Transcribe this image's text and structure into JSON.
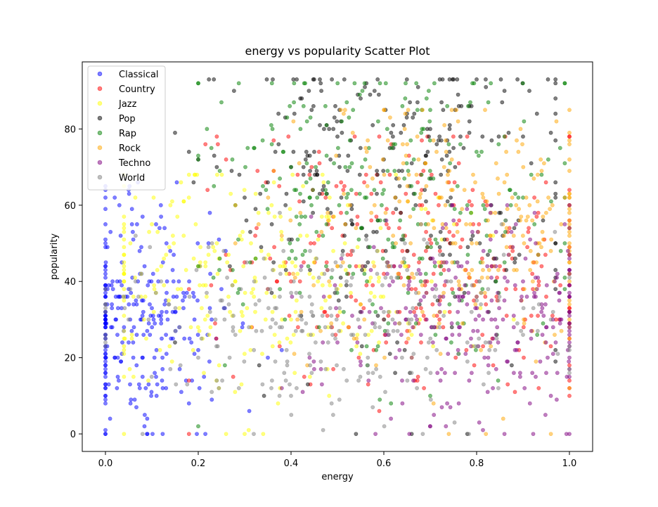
{
  "chart_data": {
    "type": "scatter",
    "title": "energy vs popularity Scatter Plot",
    "xlabel": "energy",
    "ylabel": "popularity",
    "xlim": [
      -0.05,
      1.05
    ],
    "ylim": [
      -4.6,
      97.6
    ],
    "xticks": [
      0.0,
      0.2,
      0.4,
      0.6,
      0.8,
      1.0
    ],
    "xtick_labels": [
      "0.0",
      "0.2",
      "0.4",
      "0.6",
      "0.8",
      "1.0"
    ],
    "yticks": [
      0,
      20,
      40,
      60,
      80
    ],
    "ytick_labels": [
      "0",
      "20",
      "40",
      "60",
      "80"
    ],
    "grid": false,
    "legend": "top-left",
    "marker_alpha": 0.5,
    "series": [
      {
        "name": "Classical",
        "color": "#0000ff",
        "x_range": [
          0.0,
          0.4
        ],
        "y_range": [
          0,
          66
        ],
        "approx_center": [
          0.06,
          30
        ],
        "points": [
          [
            0.01,
            4
          ],
          [
            0.02,
            62
          ],
          [
            0.03,
            60
          ],
          [
            0.05,
            64
          ],
          [
            0.06,
            20
          ],
          [
            0.08,
            15
          ],
          [
            0.09,
            4
          ],
          [
            0.1,
            33
          ],
          [
            0.12,
            30
          ],
          [
            0.15,
            32
          ],
          [
            0.17,
            25
          ],
          [
            0.18,
            8
          ],
          [
            0.2,
            22
          ],
          [
            0.22,
            26
          ],
          [
            0.25,
            38
          ],
          [
            0.31,
            6
          ],
          [
            0.35,
            20
          ],
          [
            0.38,
            22
          ],
          [
            0.05,
            24
          ],
          [
            0.0,
            44
          ],
          [
            0.03,
            36
          ],
          [
            0.07,
            40
          ],
          [
            0.11,
            22
          ],
          [
            0.04,
            28
          ],
          [
            0.02,
            20
          ],
          [
            0.09,
            27
          ],
          [
            0.13,
            35
          ],
          [
            0.16,
            17
          ],
          [
            0.06,
            51
          ],
          [
            0.08,
            57
          ]
        ]
      },
      {
        "name": "Country",
        "color": "#ff0000",
        "x_range": [
          0.18,
          1.0
        ],
        "y_range": [
          0,
          78
        ],
        "approx_center": [
          0.65,
          44
        ],
        "points": [
          [
            0.18,
            0
          ],
          [
            0.24,
            78
          ],
          [
            0.26,
            72
          ],
          [
            0.22,
            64
          ],
          [
            0.3,
            45
          ],
          [
            0.4,
            40
          ],
          [
            0.5,
            44
          ],
          [
            0.6,
            42
          ],
          [
            0.7,
            46
          ],
          [
            0.8,
            40
          ],
          [
            0.9,
            38
          ],
          [
            0.95,
            36
          ],
          [
            0.55,
            34
          ],
          [
            0.65,
            48
          ],
          [
            0.75,
            52
          ],
          [
            0.85,
            44
          ],
          [
            0.45,
            50
          ],
          [
            0.35,
            38
          ],
          [
            0.62,
            58
          ],
          [
            0.72,
            30
          ],
          [
            0.82,
            34
          ],
          [
            0.92,
            42
          ]
        ]
      },
      {
        "name": "Jazz",
        "color": "#ffff00",
        "x_range": [
          0.04,
          0.95
        ],
        "y_range": [
          0,
          68
        ],
        "approx_center": [
          0.3,
          40
        ],
        "points": [
          [
            0.04,
            0
          ],
          [
            0.1,
            55
          ],
          [
            0.14,
            60
          ],
          [
            0.18,
            68
          ],
          [
            0.2,
            44
          ],
          [
            0.24,
            50
          ],
          [
            0.28,
            40
          ],
          [
            0.32,
            36
          ],
          [
            0.34,
            0
          ],
          [
            0.36,
            32
          ],
          [
            0.4,
            30
          ],
          [
            0.44,
            42
          ],
          [
            0.48,
            28
          ],
          [
            0.5,
            38
          ],
          [
            0.55,
            34
          ],
          [
            0.6,
            30
          ],
          [
            0.66,
            26
          ],
          [
            0.72,
            32
          ],
          [
            0.8,
            36
          ],
          [
            0.88,
            30
          ],
          [
            0.26,
            0
          ],
          [
            0.3,
            0
          ]
        ]
      },
      {
        "name": "Pop",
        "color": "#000000",
        "x_range": [
          0.15,
          0.97
        ],
        "y_range": [
          0,
          93
        ],
        "approx_center": [
          0.62,
          66
        ],
        "points": [
          [
            0.18,
            74
          ],
          [
            0.2,
            72
          ],
          [
            0.24,
            70
          ],
          [
            0.3,
            62
          ],
          [
            0.35,
            66
          ],
          [
            0.4,
            70
          ],
          [
            0.45,
            74
          ],
          [
            0.5,
            78
          ],
          [
            0.55,
            88
          ],
          [
            0.58,
            90
          ],
          [
            0.6,
            72
          ],
          [
            0.62,
            81
          ],
          [
            0.65,
            84
          ],
          [
            0.7,
            80
          ],
          [
            0.72,
            78
          ],
          [
            0.76,
            89
          ],
          [
            0.8,
            93
          ],
          [
            0.82,
            91
          ],
          [
            0.86,
            90
          ],
          [
            0.9,
            78
          ],
          [
            0.93,
            84
          ],
          [
            0.96,
            79
          ],
          [
            0.54,
            0
          ],
          [
            0.66,
            0
          ],
          [
            0.78,
            0
          ]
        ]
      },
      {
        "name": "Rap",
        "color": "#008000",
        "x_range": [
          0.2,
          0.99
        ],
        "y_range": [
          0,
          92
        ],
        "approx_center": [
          0.6,
          60
        ],
        "points": [
          [
            0.2,
            2
          ],
          [
            0.25,
            87
          ],
          [
            0.28,
            60
          ],
          [
            0.32,
            75
          ],
          [
            0.36,
            80
          ],
          [
            0.4,
            70
          ],
          [
            0.44,
            62
          ],
          [
            0.48,
            66
          ],
          [
            0.52,
            58
          ],
          [
            0.56,
            72
          ],
          [
            0.6,
            64
          ],
          [
            0.64,
            86
          ],
          [
            0.67,
            92
          ],
          [
            0.7,
            85
          ],
          [
            0.74,
            76
          ],
          [
            0.78,
            60
          ],
          [
            0.82,
            56
          ],
          [
            0.86,
            78
          ],
          [
            0.9,
            62
          ],
          [
            0.94,
            68
          ],
          [
            0.98,
            75
          ],
          [
            0.7,
            10
          ]
        ]
      },
      {
        "name": "Rock",
        "color": "#ffa500",
        "x_range": [
          0.25,
          1.0
        ],
        "y_range": [
          0,
          85
        ],
        "approx_center": [
          0.75,
          55
        ],
        "points": [
          [
            0.28,
            50
          ],
          [
            0.33,
            55
          ],
          [
            0.38,
            52
          ],
          [
            0.42,
            58
          ],
          [
            0.48,
            56
          ],
          [
            0.54,
            54
          ],
          [
            0.58,
            60
          ],
          [
            0.62,
            52
          ],
          [
            0.68,
            55
          ],
          [
            0.72,
            62
          ],
          [
            0.76,
            82
          ],
          [
            0.8,
            50
          ],
          [
            0.84,
            58
          ],
          [
            0.88,
            52
          ],
          [
            0.92,
            56
          ],
          [
            0.96,
            48
          ],
          [
            0.99,
            62
          ],
          [
            0.74,
            0
          ],
          [
            0.82,
            0
          ],
          [
            0.96,
            0
          ],
          [
            0.86,
            66
          ]
        ]
      },
      {
        "name": "Techno",
        "color": "#800080",
        "x_range": [
          0.35,
          1.0
        ],
        "y_range": [
          0,
          60
        ],
        "approx_center": [
          0.8,
          32
        ],
        "points": [
          [
            0.38,
            12
          ],
          [
            0.44,
            20
          ],
          [
            0.5,
            24
          ],
          [
            0.55,
            18
          ],
          [
            0.6,
            30
          ],
          [
            0.64,
            8
          ],
          [
            0.68,
            26
          ],
          [
            0.72,
            34
          ],
          [
            0.76,
            22
          ],
          [
            0.8,
            36
          ],
          [
            0.84,
            30
          ],
          [
            0.88,
            28
          ],
          [
            0.9,
            40
          ],
          [
            0.92,
            16
          ],
          [
            0.94,
            34
          ],
          [
            0.96,
            10
          ],
          [
            0.98,
            30
          ],
          [
            0.99,
            55
          ],
          [
            0.86,
            0
          ],
          [
            0.7,
            2
          ]
        ]
      },
      {
        "name": "World",
        "color": "#808080",
        "x_range": [
          0.0,
          1.0
        ],
        "y_range": [
          0,
          60
        ],
        "approx_center": [
          0.5,
          30
        ],
        "points": [
          [
            0.0,
            34
          ],
          [
            0.05,
            30
          ],
          [
            0.08,
            0
          ],
          [
            0.12,
            40
          ],
          [
            0.16,
            28
          ],
          [
            0.2,
            20
          ],
          [
            0.24,
            14
          ],
          [
            0.28,
            26
          ],
          [
            0.32,
            22
          ],
          [
            0.36,
            30
          ],
          [
            0.4,
            10
          ],
          [
            0.44,
            36
          ],
          [
            0.48,
            24
          ],
          [
            0.52,
            14
          ],
          [
            0.56,
            26
          ],
          [
            0.6,
            32
          ],
          [
            0.66,
            20
          ],
          [
            0.72,
            28
          ],
          [
            0.78,
            24
          ],
          [
            0.84,
            22
          ],
          [
            0.9,
            26
          ],
          [
            0.96,
            30
          ]
        ]
      }
    ]
  }
}
